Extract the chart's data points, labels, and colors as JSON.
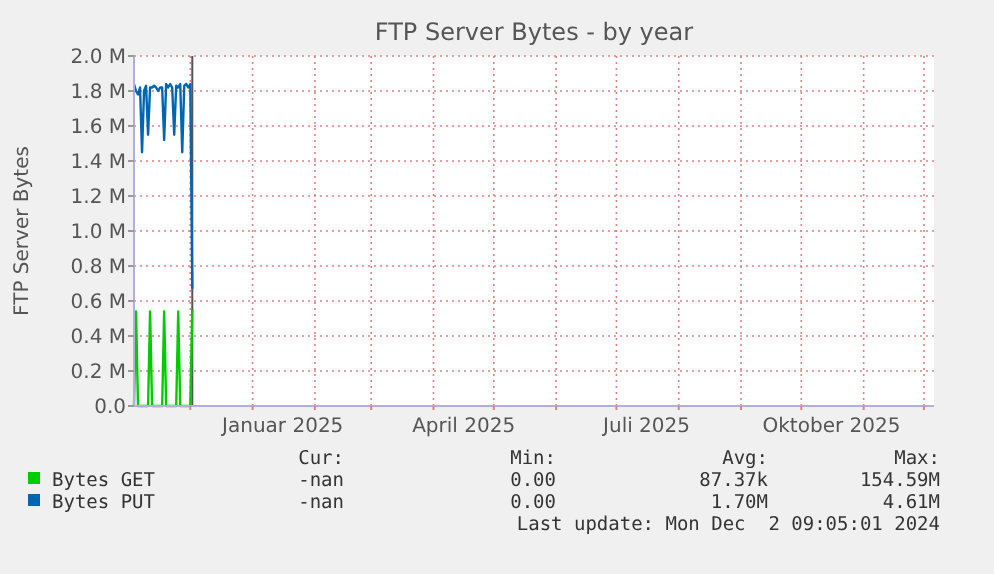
{
  "chart_data": {
    "type": "line",
    "title": "FTP Server Bytes - by year",
    "ylabel": "FTP Server Bytes",
    "x": [
      "2024-11-03",
      "2024-11-04",
      "2024-11-05",
      "2024-11-06",
      "2024-11-07",
      "2024-11-08",
      "2024-11-09",
      "2024-11-10",
      "2024-11-11",
      "2024-11-12",
      "2024-11-13",
      "2024-11-14",
      "2024-11-15",
      "2024-11-16",
      "2024-11-17",
      "2024-11-18",
      "2024-11-19",
      "2024-11-20",
      "2024-11-21",
      "2024-11-22",
      "2024-11-23",
      "2024-11-24",
      "2024-11-25",
      "2024-11-26",
      "2024-11-27",
      "2024-11-28",
      "2024-11-29",
      "2024-11-30",
      "2024-12-01",
      "2024-12-02"
    ],
    "series": [
      {
        "name": "Bytes GET",
        "color": "#00cc00",
        "values": [
          0,
          0.54,
          0,
          0,
          0,
          0,
          0,
          0,
          0.54,
          0,
          0,
          0,
          0,
          0,
          0,
          0.54,
          0,
          0,
          0,
          0,
          0,
          0,
          0.54,
          0,
          0,
          0,
          0,
          0,
          0,
          0.55
        ]
      },
      {
        "name": "Bytes PUT",
        "color": "#0066b3",
        "values": [
          1.84,
          1.8,
          1.78,
          1.82,
          1.45,
          1.8,
          1.83,
          1.55,
          1.82,
          1.82,
          1.83,
          1.82,
          1.8,
          1.82,
          1.82,
          1.52,
          1.84,
          1.82,
          1.84,
          1.82,
          1.55,
          1.83,
          1.82,
          1.84,
          1.45,
          1.83,
          1.84,
          1.82,
          1.84,
          0.67
        ]
      }
    ],
    "xlim": [
      "2024-11-03",
      "2025-12-06"
    ],
    "xticks": [
      {
        "value": "2024-12-01",
        "label": null
      },
      {
        "value": "2025-01-01",
        "label": null
      },
      {
        "value": "2025-01-16",
        "label": "Januar 2025"
      },
      {
        "value": "2025-02-01",
        "label": null
      },
      {
        "value": "2025-03-01",
        "label": null
      },
      {
        "value": "2025-04-01",
        "label": null
      },
      {
        "value": "2025-04-16",
        "label": "April 2025"
      },
      {
        "value": "2025-05-01",
        "label": null
      },
      {
        "value": "2025-06-01",
        "label": null
      },
      {
        "value": "2025-07-01",
        "label": null
      },
      {
        "value": "2025-07-16",
        "label": "Juli 2025"
      },
      {
        "value": "2025-08-01",
        "label": null
      },
      {
        "value": "2025-09-01",
        "label": null
      },
      {
        "value": "2025-10-01",
        "label": null
      },
      {
        "value": "2025-10-16",
        "label": "Oktober 2025"
      },
      {
        "value": "2025-11-01",
        "label": null
      },
      {
        "value": "2025-12-01",
        "label": null
      }
    ],
    "ylim": [
      0,
      2.0
    ],
    "yticks": [
      {
        "value": 0,
        "label": "0.0"
      },
      {
        "value": 0.2,
        "label": "0.2 M"
      },
      {
        "value": 0.4,
        "label": "0.4 M"
      },
      {
        "value": 0.6,
        "label": "0.6 M"
      },
      {
        "value": 0.8,
        "label": "0.8 M"
      },
      {
        "value": 1.0,
        "label": "1.0 M"
      },
      {
        "value": 1.2,
        "label": "1.2 M"
      },
      {
        "value": 1.4,
        "label": "1.4 M"
      },
      {
        "value": 1.6,
        "label": "1.6 M"
      },
      {
        "value": 1.8,
        "label": "1.8 M"
      },
      {
        "value": 2.0,
        "label": "2.0 M"
      }
    ],
    "ref_lines": [
      {
        "axis": "x",
        "value": "2024-12-02",
        "color": "#555555"
      }
    ],
    "grid": true,
    "legend": "bottom",
    "marker": "none",
    "line_style": "solid",
    "annotations": [
      "Cur:",
      "Min:",
      "Avg:",
      "Max:",
      "-nan",
      "0.00",
      "87.37k",
      "154.59M",
      "-nan",
      "0.00",
      "1.70M",
      "4.61M",
      "Last update: Mon Dec  2 09:05:01 2024"
    ]
  }
}
